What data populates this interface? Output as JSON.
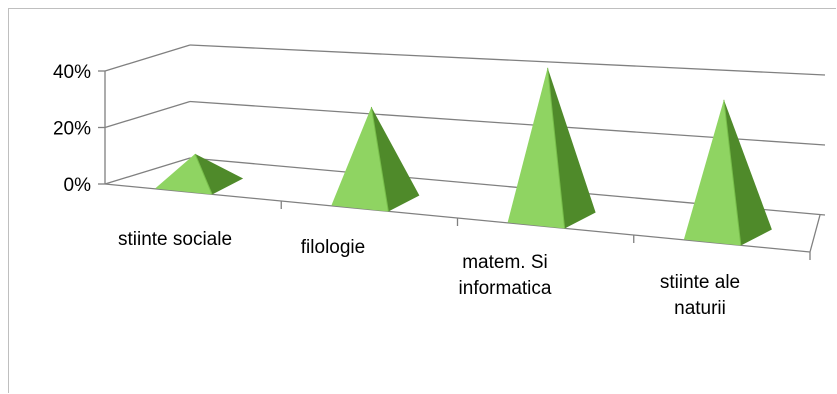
{
  "chart_data": {
    "type": "bar",
    "style": "3d-pyramid",
    "categories": [
      "stiinte sociale",
      "filologie",
      "matem. Si informatica",
      "stiinte ale naturii"
    ],
    "category_lines": [
      [
        "stiinte sociale"
      ],
      [
        "filologie"
      ],
      [
        "matem. Si",
        "informatica"
      ],
      [
        "stiinte ale",
        "naturii"
      ]
    ],
    "values": [
      0.1,
      0.28,
      0.42,
      0.36
    ],
    "ylim": [
      0,
      0.4
    ],
    "yticks": [
      "0%",
      "20%",
      "40%"
    ],
    "grid": true,
    "colors": {
      "light": "#8fd462",
      "mid": "#77bd4a",
      "dark": "#4f8a2a",
      "axis": "#808080",
      "frame": "#bfbfbf"
    }
  }
}
